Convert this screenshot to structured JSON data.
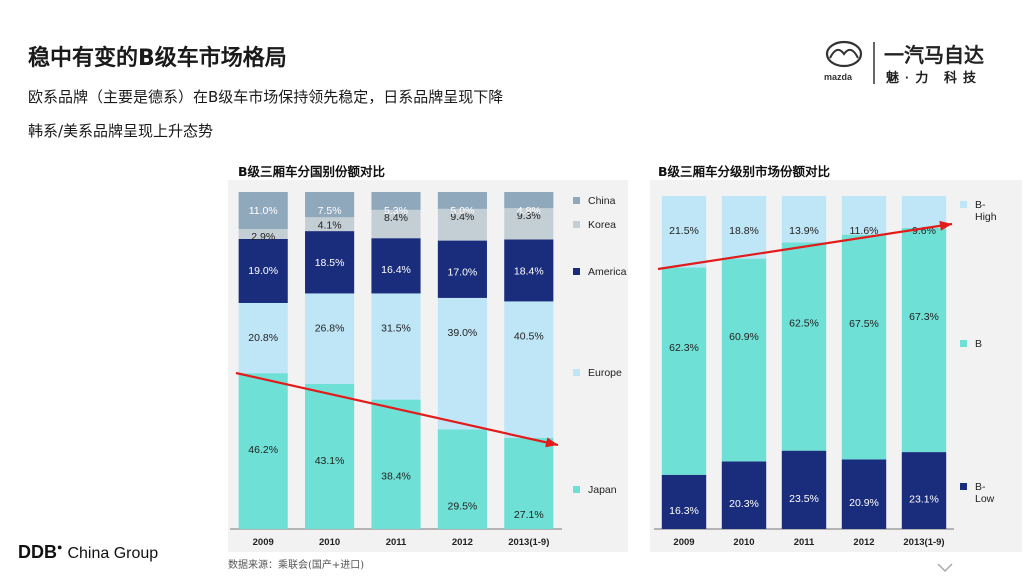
{
  "header": {
    "title": "稳中有变的B级车市场格局",
    "line1": "欧系品牌（主要是德系）在B级车市场保持领先稳定，日系品牌呈现下降",
    "line2": "韩系/美系品牌呈现上升态势"
  },
  "logo": {
    "brand_text": "mazda",
    "cn_name": "一汽马自达",
    "slogan": "魅·力 科技"
  },
  "footer": {
    "company": "DDB",
    "company_suffix": "China Group",
    "source": "数据来源：乘联会(国产+进口)"
  },
  "colors": {
    "japan": "#6fe0d6",
    "europe": "#bfe6f7",
    "america": "#1a2d7c",
    "korea": "#c4cfd5",
    "china": "#8fa8bc",
    "b_high": "#bfe6f7",
    "b": "#6fe0d6",
    "b_low": "#1a2d7c",
    "trend": "#e21b1b"
  },
  "chart_data": [
    {
      "type": "bar",
      "stacked": true,
      "title": "B级三厢车分国别份额对比",
      "categories": [
        "2009",
        "2010",
        "2011",
        "2012",
        "2013(1-9)"
      ],
      "series": [
        {
          "name": "Japan",
          "values": [
            46.2,
            43.1,
            38.4,
            29.5,
            27.1
          ],
          "labels": [
            "46.2%",
            "43.1%",
            "38.4%",
            "29.5%",
            "27.1%"
          ]
        },
        {
          "name": "Europe",
          "values": [
            20.8,
            26.8,
            31.5,
            39.0,
            40.5
          ],
          "labels": [
            "20.8%",
            "26.8%",
            "31.5%",
            "39.0%",
            "40.5%"
          ]
        },
        {
          "name": "America",
          "values": [
            19.0,
            18.5,
            16.4,
            17.0,
            18.4
          ],
          "labels": [
            "19.0%",
            "18.5%",
            "16.4%",
            "17.0%",
            "18.4%"
          ]
        },
        {
          "name": "Korea",
          "values": [
            2.9,
            4.1,
            8.4,
            9.4,
            9.3
          ],
          "labels": [
            "2.9%",
            "4.1%",
            "8.4%",
            "9.4%",
            "9.3%"
          ]
        },
        {
          "name": "China",
          "values": [
            11.0,
            7.5,
            5.3,
            5.0,
            4.8
          ],
          "labels": [
            "11.0%",
            "7.5%",
            "5.3%",
            "5.0%",
            "4.8%"
          ]
        }
      ],
      "ylim": [
        0,
        100
      ],
      "trend": "downward arrow across Japan share"
    },
    {
      "type": "bar",
      "stacked": true,
      "title": "B级三厢车分级别市场份额对比",
      "categories": [
        "2009",
        "2010",
        "2011",
        "2012",
        "2013(1-9)"
      ],
      "series": [
        {
          "name": "B-Low",
          "values": [
            16.3,
            20.3,
            23.5,
            20.9,
            23.1
          ],
          "labels": [
            "16.3%",
            "20.3%",
            "23.5%",
            "20.9%",
            "23.1%"
          ]
        },
        {
          "name": "B",
          "values": [
            62.3,
            60.9,
            62.5,
            67.5,
            67.3
          ],
          "labels": [
            "62.3%",
            "60.9%",
            "62.5%",
            "67.5%",
            "67.3%"
          ]
        },
        {
          "name": "B-High",
          "values": [
            21.5,
            18.8,
            13.9,
            11.6,
            9.6
          ],
          "labels": [
            "21.5%",
            "18.8%",
            "13.9%",
            "11.6%",
            "9.6%"
          ]
        }
      ],
      "ylim": [
        0,
        100
      ],
      "trend": "upward arrow across B / B-High boundary"
    }
  ]
}
